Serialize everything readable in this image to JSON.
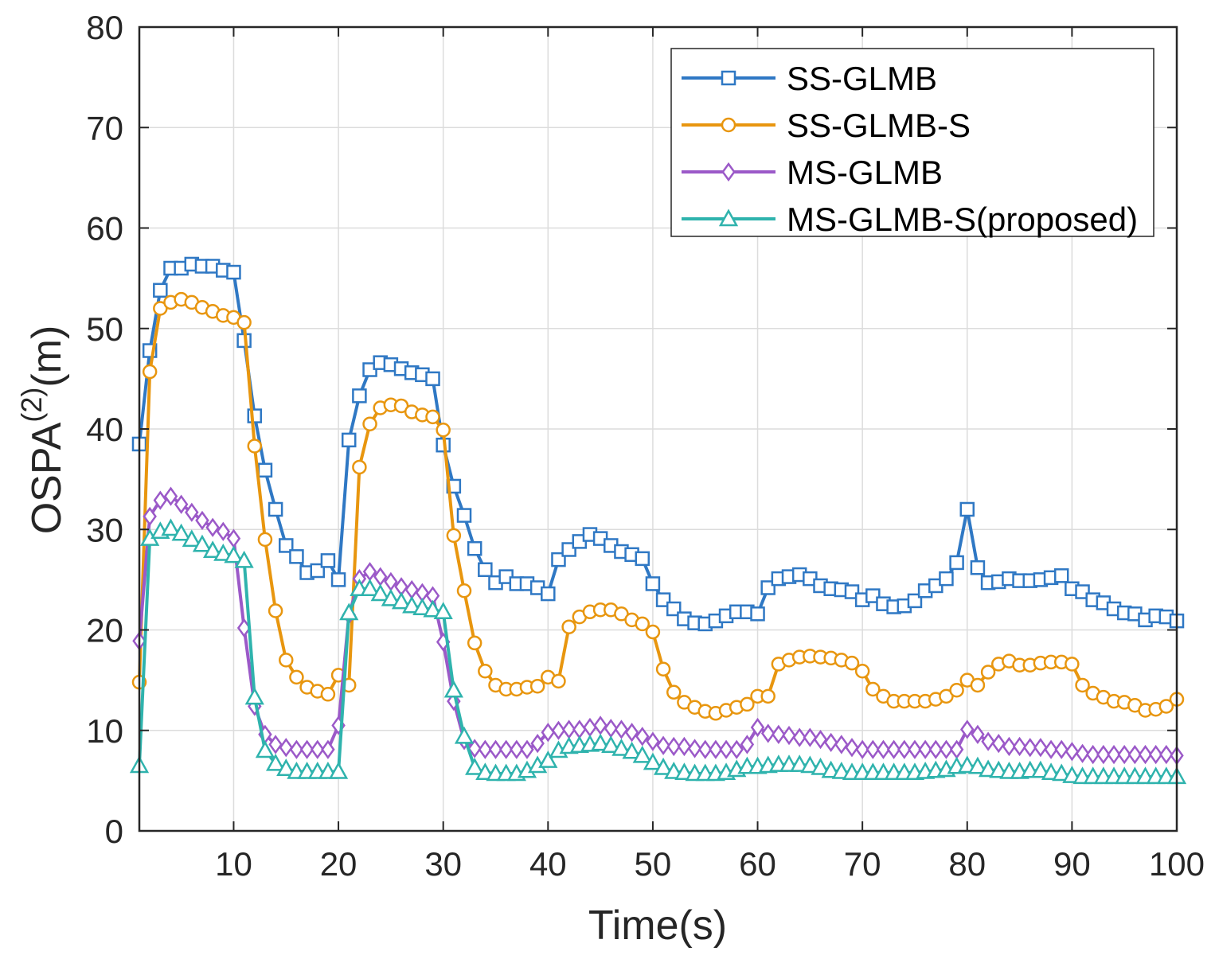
{
  "chart_data": {
    "type": "line",
    "title": "",
    "xlabel": "Time(s)",
    "ylabel": "OSPA",
    "ylabel_superscript": "(2)",
    "ylabel_unit": "(m)",
    "xlim": [
      1,
      100
    ],
    "ylim": [
      0,
      80
    ],
    "xticks": [
      10,
      20,
      30,
      40,
      50,
      60,
      70,
      80,
      90,
      100
    ],
    "yticks": [
      0,
      10,
      20,
      30,
      40,
      50,
      60,
      70,
      80
    ],
    "grid": true,
    "legend_position": "top-right",
    "series": [
      {
        "name": "SS-GLMB",
        "color": "#2f78c4",
        "marker": "square",
        "values": [
          38.5,
          47.8,
          53.8,
          56.0,
          56.0,
          56.4,
          56.2,
          56.2,
          55.8,
          55.6,
          48.8,
          41.3,
          35.9,
          32.0,
          28.4,
          27.3,
          25.7,
          25.9,
          26.9,
          25.0,
          38.9,
          43.3,
          45.9,
          46.6,
          46.4,
          46.0,
          45.6,
          45.4,
          45.0,
          38.4,
          34.3,
          31.4,
          28.1,
          26.0,
          24.7,
          25.3,
          24.6,
          24.6,
          24.2,
          23.6,
          27.0,
          28.0,
          28.8,
          29.5,
          29.1,
          28.4,
          27.8,
          27.5,
          27.1,
          24.6,
          23.0,
          22.1,
          21.1,
          20.7,
          20.6,
          20.9,
          21.4,
          21.8,
          21.8,
          21.6,
          24.2,
          25.1,
          25.3,
          25.5,
          25.1,
          24.4,
          24.1,
          24.0,
          23.8,
          23.0,
          23.4,
          22.6,
          22.3,
          22.4,
          22.9,
          23.9,
          24.4,
          25.1,
          26.7,
          32.0,
          26.2,
          24.7,
          24.8,
          25.1,
          24.9,
          24.9,
          25.0,
          25.2,
          25.4,
          24.1,
          23.8,
          23.0,
          22.7,
          22.1,
          21.7,
          21.6,
          21.0,
          21.4,
          21.3,
          20.9
        ]
      },
      {
        "name": "SS-GLMB-S",
        "color": "#e8960f",
        "marker": "circle",
        "values": [
          14.8,
          45.7,
          52.0,
          52.6,
          52.9,
          52.6,
          52.1,
          51.7,
          51.3,
          51.1,
          50.6,
          38.3,
          29.0,
          21.9,
          17.0,
          15.3,
          14.3,
          13.9,
          13.6,
          15.5,
          14.5,
          36.2,
          40.5,
          42.1,
          42.4,
          42.3,
          41.7,
          41.4,
          41.2,
          39.9,
          29.4,
          23.9,
          18.7,
          15.9,
          14.5,
          14.1,
          14.1,
          14.3,
          14.4,
          15.3,
          14.9,
          20.3,
          21.3,
          21.8,
          22.0,
          22.0,
          21.6,
          21.0,
          20.6,
          19.8,
          16.1,
          13.8,
          12.8,
          12.3,
          11.9,
          11.7,
          12.0,
          12.3,
          12.6,
          13.4,
          13.4,
          16.6,
          17.0,
          17.3,
          17.4,
          17.3,
          17.2,
          17.0,
          16.7,
          15.9,
          14.1,
          13.4,
          12.9,
          12.9,
          12.9,
          12.9,
          13.1,
          13.4,
          14.0,
          15.0,
          14.5,
          15.8,
          16.6,
          16.9,
          16.5,
          16.5,
          16.7,
          16.8,
          16.8,
          16.6,
          14.5,
          13.7,
          13.3,
          12.9,
          12.8,
          12.5,
          12.0,
          12.1,
          12.4,
          13.1
        ]
      },
      {
        "name": "MS-GLMB",
        "color": "#9b59c8",
        "marker": "diamond",
        "values": [
          18.9,
          31.3,
          32.9,
          33.3,
          32.5,
          31.7,
          30.9,
          30.2,
          29.8,
          29.1,
          20.2,
          12.4,
          9.6,
          8.6,
          8.3,
          8.1,
          8.1,
          8.1,
          8.1,
          10.5,
          21.5,
          25.1,
          25.8,
          25.3,
          24.8,
          24.3,
          24.0,
          23.7,
          23.4,
          18.8,
          12.9,
          9.0,
          8.2,
          8.1,
          8.1,
          8.1,
          8.1,
          8.1,
          8.7,
          9.8,
          10.0,
          10.1,
          10.1,
          10.3,
          10.5,
          10.2,
          10.1,
          9.8,
          9.4,
          8.9,
          8.5,
          8.4,
          8.4,
          8.2,
          8.1,
          8.1,
          8.1,
          8.1,
          8.6,
          10.3,
          9.7,
          9.6,
          9.5,
          9.3,
          9.3,
          9.1,
          8.8,
          8.6,
          8.3,
          8.1,
          8.1,
          8.1,
          8.1,
          8.1,
          8.1,
          8.1,
          8.1,
          8.1,
          8.1,
          10.1,
          9.6,
          8.9,
          8.7,
          8.4,
          8.4,
          8.3,
          8.3,
          8.1,
          8.1,
          7.9,
          7.7,
          7.6,
          7.6,
          7.6,
          7.6,
          7.6,
          7.6,
          7.6,
          7.6,
          7.5
        ]
      },
      {
        "name": "MS-GLMB-S(proposed)",
        "color": "#2fb3ad",
        "marker": "triangle",
        "values": [
          6.5,
          29.1,
          29.8,
          30.1,
          29.6,
          29.0,
          28.5,
          27.9,
          27.6,
          27.4,
          26.9,
          13.3,
          8.0,
          6.7,
          6.2,
          5.9,
          5.9,
          5.9,
          5.9,
          5.9,
          21.7,
          24.1,
          24.1,
          23.6,
          23.1,
          22.8,
          22.4,
          22.2,
          22.0,
          21.8,
          14.0,
          9.4,
          6.3,
          5.8,
          5.7,
          5.7,
          5.7,
          6.0,
          6.5,
          7.0,
          8.0,
          8.4,
          8.5,
          8.6,
          8.7,
          8.5,
          8.2,
          7.9,
          7.5,
          6.8,
          6.3,
          5.9,
          5.8,
          5.7,
          5.7,
          5.7,
          5.8,
          6.1,
          6.4,
          6.4,
          6.5,
          6.6,
          6.6,
          6.6,
          6.5,
          6.3,
          6.0,
          5.9,
          5.8,
          5.8,
          5.8,
          5.8,
          5.8,
          5.8,
          5.8,
          5.9,
          6.0,
          6.1,
          6.4,
          6.5,
          6.4,
          6.1,
          6.0,
          5.9,
          5.9,
          6.0,
          6.0,
          5.8,
          5.7,
          5.5,
          5.4,
          5.4,
          5.4,
          5.4,
          5.4,
          5.4,
          5.4,
          5.4,
          5.4,
          5.4
        ]
      }
    ]
  }
}
